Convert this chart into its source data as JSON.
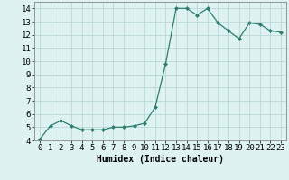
{
  "x": [
    0,
    1,
    2,
    3,
    4,
    5,
    6,
    7,
    8,
    9,
    10,
    11,
    12,
    13,
    14,
    15,
    16,
    17,
    18,
    19,
    20,
    21,
    22,
    23
  ],
  "y": [
    4.1,
    5.1,
    5.5,
    5.1,
    4.8,
    4.8,
    4.8,
    5.0,
    5.0,
    5.1,
    5.3,
    6.5,
    9.8,
    14.0,
    14.0,
    13.5,
    14.0,
    12.9,
    12.3,
    11.7,
    12.9,
    12.8,
    12.3,
    12.2
  ],
  "line_color": "#2e7d6e",
  "marker": "D",
  "marker_size": 2,
  "bg_color": "#dff2f2",
  "grid_color": "#b8d8d8",
  "xlabel": "Humidex (Indice chaleur)",
  "xlim": [
    -0.5,
    23.5
  ],
  "ylim": [
    4,
    14.5
  ],
  "yticks": [
    4,
    5,
    6,
    7,
    8,
    9,
    10,
    11,
    12,
    13,
    14
  ],
  "xticks": [
    0,
    1,
    2,
    3,
    4,
    5,
    6,
    7,
    8,
    9,
    10,
    11,
    12,
    13,
    14,
    15,
    16,
    17,
    18,
    19,
    20,
    21,
    22,
    23
  ],
  "xlabel_fontsize": 7,
  "tick_fontsize": 6.5
}
